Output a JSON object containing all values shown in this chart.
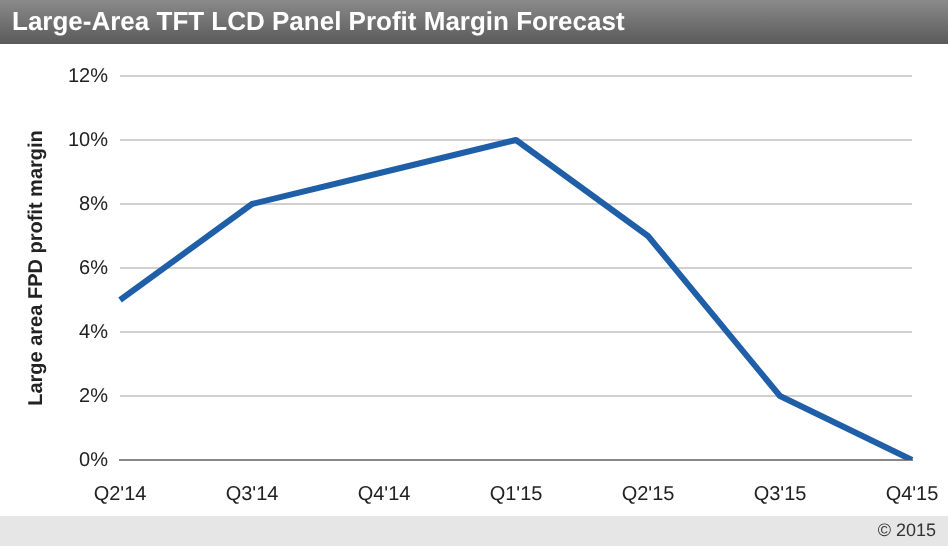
{
  "chart_data": {
    "type": "line",
    "title": "Large-Area TFT LCD Panel Profit Margin Forecast",
    "ylabel": "Large area FPD profit margin",
    "categories": [
      "Q2'14",
      "Q3'14",
      "Q4'14",
      "Q1'15",
      "Q2'15",
      "Q3'15",
      "Q4'15"
    ],
    "series": [
      {
        "color": "#1f5fa8",
        "values": [
          5,
          8,
          9,
          10,
          7,
          2,
          0
        ]
      }
    ],
    "ylim": [
      0,
      12
    ],
    "yticks": [
      {
        "value": 0,
        "label": "0%"
      },
      {
        "value": 2,
        "label": "2%"
      },
      {
        "value": 4,
        "label": "4%"
      },
      {
        "value": 6,
        "label": "6%"
      },
      {
        "value": 8,
        "label": "8%"
      },
      {
        "value": 10,
        "label": "10%"
      },
      {
        "value": 12,
        "label": "12%"
      }
    ],
    "grid": "y",
    "legend": false,
    "marker": "none",
    "line_style": "solid",
    "annotations": [
      "© 2015"
    ]
  }
}
